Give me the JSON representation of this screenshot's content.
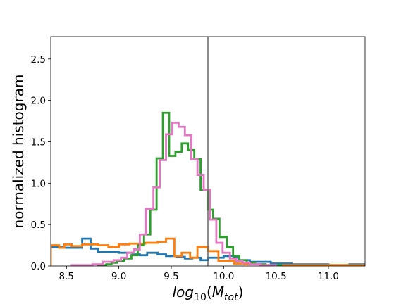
{
  "chart_data": {
    "type": "histogram",
    "title": "",
    "xlabel": {
      "base": "log",
      "sub": "10",
      "open": "(",
      "var": "M",
      "varsub": "tot",
      "close": ")"
    },
    "ylabel": "normalized histogram",
    "xlim": [
      8.35,
      11.35
    ],
    "ylim": [
      0,
      2.77
    ],
    "xticks": [
      8.5,
      9.0,
      9.5,
      10.0,
      10.5,
      11.0
    ],
    "xtick_labels": [
      "8.5",
      "9.0",
      "9.5",
      "10.0",
      "10.5",
      "11.0"
    ],
    "yticks": [
      0.0,
      0.5,
      1.0,
      1.5,
      2.0,
      2.5
    ],
    "ytick_labels": [
      "0.0",
      "0.5",
      "1.0",
      "1.5",
      "2.0",
      "2.5"
    ],
    "grid": false,
    "legend": "none",
    "vline": {
      "x": 9.85,
      "color": "#666666"
    },
    "series": [
      {
        "color": "#1f77b4",
        "edges": [
          8.35,
          8.48,
          8.65,
          8.73,
          8.8,
          9.0,
          9.13,
          9.2,
          9.27,
          9.37,
          9.45,
          9.55,
          9.63,
          9.7,
          9.78,
          9.85,
          10.0,
          10.1,
          10.15,
          10.25,
          10.45,
          10.65,
          11.0,
          11.2,
          11.35
        ],
        "values": [
          0.23,
          0.22,
          0.33,
          0.21,
          0.17,
          0.16,
          0.14,
          0.13,
          0.16,
          0.14,
          0.12,
          0.11,
          0.09,
          0.1,
          0.07,
          0.1,
          0.12,
          0.1,
          0.07,
          0.05,
          0.03,
          0.02,
          0.01,
          0.02
        ]
      },
      {
        "color": "#ff7f0e",
        "edges": [
          8.35,
          8.43,
          8.48,
          8.55,
          8.65,
          8.8,
          8.9,
          9.0,
          9.1,
          9.25,
          9.37,
          9.45,
          9.53,
          9.6,
          9.68,
          9.75,
          9.85,
          9.95,
          10.1,
          10.2,
          10.4,
          11.35
        ],
        "values": [
          0.25,
          0.22,
          0.26,
          0.24,
          0.26,
          0.25,
          0.23,
          0.26,
          0.27,
          0.28,
          0.29,
          0.33,
          0.12,
          0.16,
          0.1,
          0.23,
          0.18,
          0.06,
          0.03,
          0.02,
          0.01
        ]
      },
      {
        "color": "#2ca02c",
        "edges": [
          8.8,
          8.88,
          8.93,
          8.98,
          9.05,
          9.12,
          9.18,
          9.24,
          9.3,
          9.36,
          9.42,
          9.48,
          9.54,
          9.6,
          9.66,
          9.72,
          9.78,
          9.85,
          9.9,
          9.96,
          10.03,
          10.09,
          10.15,
          10.22,
          10.3,
          10.4,
          10.55
        ],
        "values": [
          0.01,
          0.02,
          0.04,
          0.06,
          0.09,
          0.13,
          0.25,
          0.38,
          0.68,
          1.3,
          1.85,
          1.33,
          1.38,
          1.48,
          1.4,
          1.29,
          0.92,
          0.68,
          0.57,
          0.35,
          0.23,
          0.12,
          0.07,
          0.04,
          0.02,
          0.01
        ]
      },
      {
        "color": "#e377c2",
        "edges": [
          8.55,
          8.75,
          8.85,
          8.95,
          9.02,
          9.08,
          9.14,
          9.2,
          9.26,
          9.33,
          9.39,
          9.45,
          9.51,
          9.57,
          9.63,
          9.69,
          9.75,
          9.81,
          9.87,
          9.93,
          9.99,
          10.06,
          10.12,
          10.18,
          10.25,
          10.35,
          10.5
        ],
        "values": [
          0.01,
          0.02,
          0.05,
          0.07,
          0.1,
          0.16,
          0.2,
          0.38,
          0.69,
          0.95,
          1.28,
          1.59,
          1.73,
          1.68,
          1.58,
          1.29,
          1.1,
          0.92,
          0.56,
          0.28,
          0.16,
          0.09,
          0.06,
          0.04,
          0.02,
          0.01
        ]
      }
    ]
  }
}
